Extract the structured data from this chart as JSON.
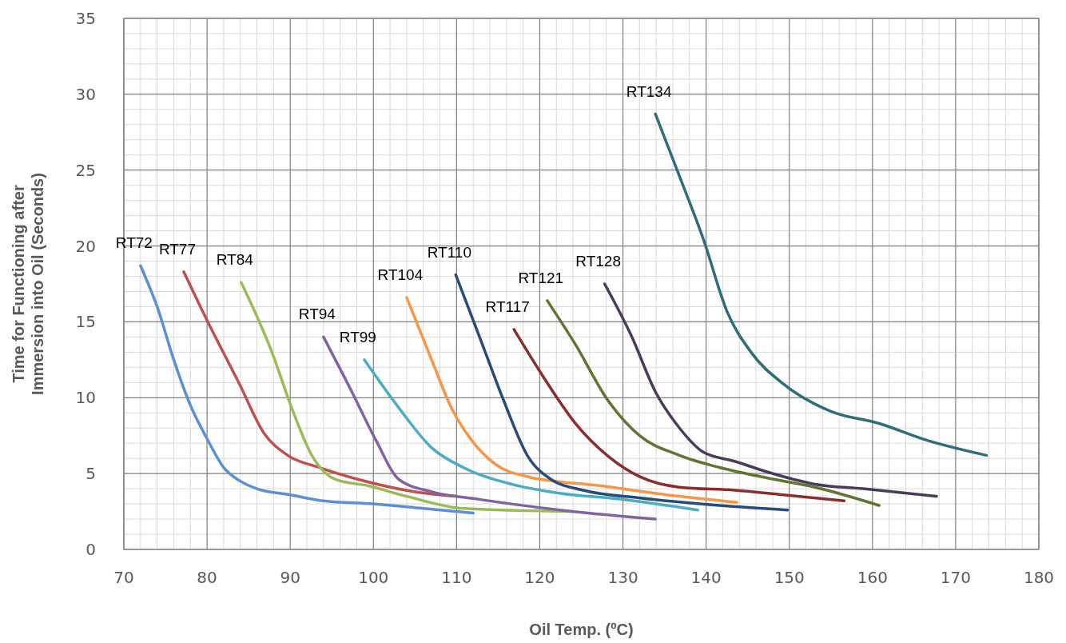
{
  "chart_data": {
    "type": "line",
    "xlabel": "Oil Temp. (ºC)",
    "ylabel": "Time for Functioning after Immersion into Oil (Seconds)",
    "xlim": [
      70,
      180
    ],
    "ylim": [
      0,
      35
    ],
    "xticks": [
      70,
      80,
      90,
      100,
      110,
      120,
      130,
      140,
      150,
      160,
      170,
      180
    ],
    "yticks": [
      0,
      5,
      10,
      15,
      20,
      25,
      30,
      35
    ],
    "grid": true,
    "marker": "none",
    "line_style": "solid",
    "series": [
      {
        "name": "RT72",
        "color": "#5b8fd6",
        "x": [
          72,
          74,
          76,
          78,
          80,
          82,
          84,
          86,
          90,
          94,
          100,
          106,
          112
        ],
        "values": [
          18.7,
          16,
          12.5,
          9.5,
          7.3,
          5.4,
          4.5,
          4.0,
          3.6,
          3.2,
          3.0,
          2.7,
          2.4
        ]
      },
      {
        "name": "RT77",
        "color": "#c0504d",
        "x": [
          77.2,
          80,
          83.9,
          86.8,
          89.7,
          93.5,
          98.3,
          105,
          110
        ],
        "values": [
          18.3,
          15.1,
          10.9,
          7.7,
          6.2,
          5.4,
          4.6,
          3.8,
          3.5
        ]
      },
      {
        "name": "RT84",
        "color": "#9bbb59",
        "x": [
          84.1,
          87.8,
          90.2,
          92.6,
          95.5,
          99.3,
          104,
          110.8,
          124
        ],
        "values": [
          17.6,
          13,
          9.3,
          6.2,
          4.6,
          4.2,
          3.5,
          2.7,
          2.5
        ]
      },
      {
        "name": "RT94",
        "color": "#8064a2",
        "x": [
          94,
          97.4,
          100.3,
          103.1,
          107,
          112.7,
          122.4,
          133.9
        ],
        "values": [
          14,
          10.4,
          7.2,
          4.6,
          3.8,
          3.3,
          2.6,
          2.0
        ]
      },
      {
        "name": "RT99",
        "color": "#4bacc6",
        "x": [
          98.9,
          103.1,
          107,
          110.8,
          116.6,
          122.4,
          130,
          139
        ],
        "values": [
          12.5,
          9.3,
          6.7,
          5.4,
          4.3,
          3.7,
          3.3,
          2.6
        ]
      },
      {
        "name": "RT104",
        "color": "#f79646",
        "x": [
          104,
          107,
          109.4,
          111.8,
          114.7,
          118.5,
          127.2,
          136.8,
          143.7
        ],
        "values": [
          16.6,
          12.5,
          9.3,
          7.2,
          5.6,
          4.8,
          4.2,
          3.5,
          3.1
        ]
      },
      {
        "name": "RT110",
        "color": "#254c7a",
        "x": [
          109.9,
          112.7,
          115.6,
          118.5,
          121.4,
          125.2,
          131.9,
          141.6,
          149.8
        ],
        "values": [
          18.1,
          14.1,
          9.9,
          6.2,
          4.6,
          3.9,
          3.4,
          2.9,
          2.6
        ]
      },
      {
        "name": "RT117",
        "color": "#8b2d2d",
        "x": [
          116.9,
          120.4,
          124.3,
          128.1,
          132,
          136.8,
          143.5,
          149.3,
          156.6
        ],
        "values": [
          14.5,
          11.4,
          8.3,
          6.2,
          4.8,
          4.1,
          3.9,
          3.6,
          3.2
        ]
      },
      {
        "name": "RT121",
        "color": "#5f7530",
        "x": [
          120.9,
          124.3,
          128.1,
          132,
          136.8,
          141.6,
          147.4,
          153.1,
          160.8
        ],
        "values": [
          16.4,
          13.5,
          9.9,
          7.5,
          6.2,
          5.4,
          4.7,
          4.1,
          2.9
        ]
      },
      {
        "name": "RT128",
        "color": "#4a3b5c",
        "x": [
          127.8,
          131,
          133.9,
          136.8,
          139.7,
          143.5,
          147.4,
          153.1,
          158.9,
          167.7
        ],
        "values": [
          17.5,
          14.1,
          10.4,
          8.0,
          6.4,
          5.8,
          5.1,
          4.3,
          4.0,
          3.5
        ]
      },
      {
        "name": "RT134",
        "color": "#2e6d7a",
        "x": [
          133.9,
          136.8,
          139.7,
          142.5,
          145.4,
          149.3,
          155,
          160.8,
          166.5,
          173.7
        ],
        "values": [
          28.7,
          24.6,
          20.4,
          15.7,
          13.0,
          10.9,
          9.1,
          8.3,
          7.2,
          6.2
        ]
      }
    ]
  }
}
